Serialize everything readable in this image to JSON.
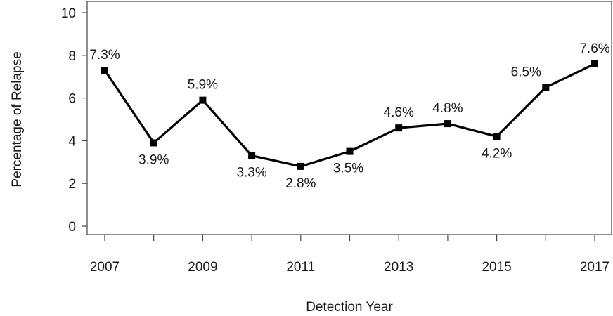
{
  "chart_data": {
    "type": "line",
    "title": "",
    "xlabel": "Detection Year",
    "ylabel": "Percentage of Relapse",
    "x": [
      2007,
      2008,
      2009,
      2010,
      2011,
      2012,
      2013,
      2014,
      2015,
      2016,
      2017
    ],
    "x_tick_values": [
      2007,
      2008,
      2009,
      2010,
      2011,
      2012,
      2013,
      2014,
      2015,
      2016,
      2017
    ],
    "x_tick_labels": [
      "2007",
      "",
      "2009",
      "",
      "2011",
      "",
      "2013",
      "",
      "2015",
      "",
      "2017"
    ],
    "y_ticks": [
      0,
      2,
      4,
      6,
      8,
      10
    ],
    "y_tick_labels": [
      "0",
      "2",
      "4",
      "6",
      "8",
      "10"
    ],
    "xlim": [
      2007,
      2017
    ],
    "ylim": [
      0,
      10
    ],
    "grid": false,
    "series": [
      {
        "values": [
          7.3,
          3.9,
          5.9,
          3.3,
          2.8,
          3.5,
          4.6,
          4.8,
          4.2,
          6.5,
          7.6
        ],
        "labels": [
          "7.3%",
          "3.9%",
          "5.9%",
          "3.3%",
          "2.8%",
          "3.5%",
          "4.6%",
          "4.8%",
          "4.2%",
          "6.5%",
          "7.6%"
        ],
        "color": "#000000",
        "marker": "square"
      }
    ]
  }
}
